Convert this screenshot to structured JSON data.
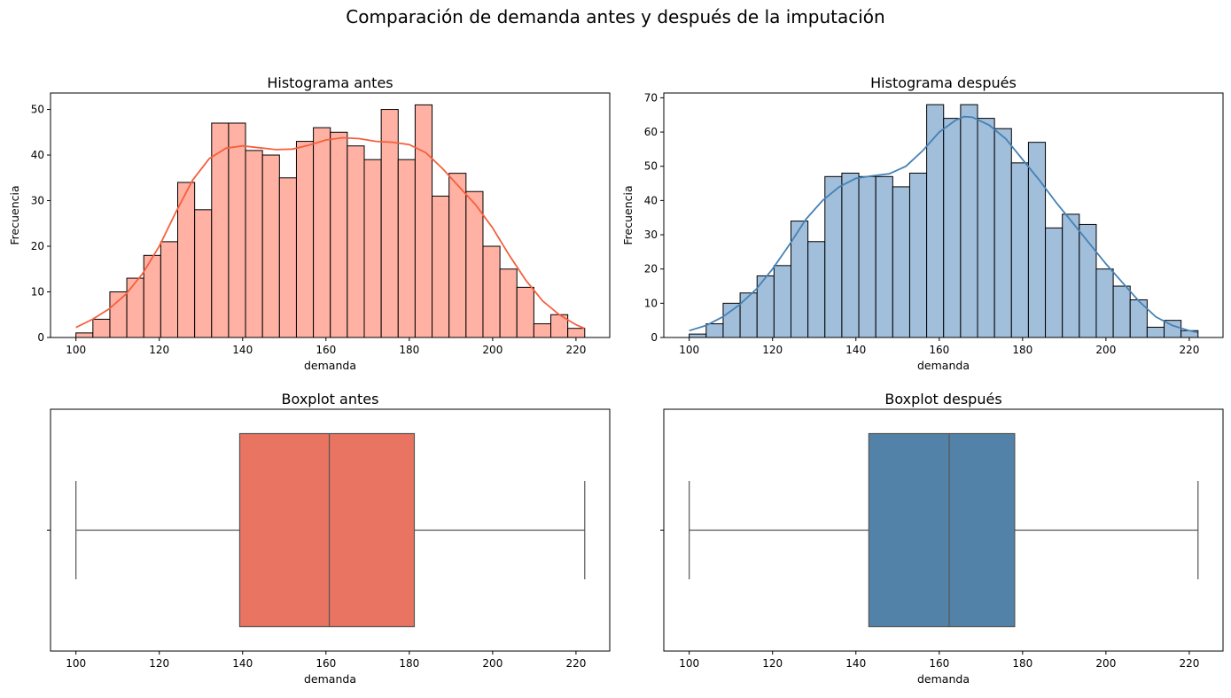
{
  "suptitle": "Comparación de demanda antes y después de la imputación",
  "chart_data": [
    {
      "id": "hist-antes",
      "type": "bar",
      "title": "Histograma antes",
      "xlabel": "demanda",
      "ylabel": "Frecuencia",
      "xlim": [
        93.9,
        228.1
      ],
      "ylim": [
        0,
        53.6
      ],
      "xticks": [
        100,
        120,
        140,
        160,
        180,
        200,
        220
      ],
      "yticks": [
        0,
        10,
        20,
        30,
        40,
        50
      ],
      "bin_start": 100,
      "bin_width": 4.07,
      "values": [
        1,
        4,
        10,
        13,
        18,
        21,
        34,
        28,
        47,
        47,
        41,
        40,
        35,
        43,
        46,
        45,
        42,
        39,
        50,
        39,
        51,
        31,
        36,
        32,
        20,
        15,
        11,
        3,
        5,
        2
      ],
      "fill": "#ffb1a3",
      "kde_color": "#f4603e",
      "kde": [
        [
          100,
          2.2
        ],
        [
          104,
          4
        ],
        [
          108,
          6.3
        ],
        [
          112,
          9.5
        ],
        [
          116,
          14
        ],
        [
          120,
          20
        ],
        [
          124,
          27.5
        ],
        [
          128,
          34.5
        ],
        [
          132,
          39.2
        ],
        [
          136,
          41.5
        ],
        [
          140,
          42
        ],
        [
          144,
          41.6
        ],
        [
          148,
          41.2
        ],
        [
          152,
          41.3
        ],
        [
          156,
          42.2
        ],
        [
          160,
          43.3
        ],
        [
          164,
          43.8
        ],
        [
          168,
          43.6
        ],
        [
          172,
          43
        ],
        [
          176,
          42.8
        ],
        [
          180,
          42.3
        ],
        [
          184,
          40.5
        ],
        [
          188,
          37
        ],
        [
          192,
          33
        ],
        [
          196,
          29
        ],
        [
          200,
          24
        ],
        [
          204,
          18
        ],
        [
          208,
          12.5
        ],
        [
          212,
          8
        ],
        [
          216,
          5
        ],
        [
          220,
          2.8
        ],
        [
          222,
          2
        ]
      ]
    },
    {
      "id": "hist-despues",
      "type": "bar",
      "title": "Histograma después",
      "xlabel": "demanda",
      "ylabel": "Frecuencia",
      "xlim": [
        93.9,
        228.1
      ],
      "ylim": [
        0,
        71.4
      ],
      "xticks": [
        100,
        120,
        140,
        160,
        180,
        200,
        220
      ],
      "yticks": [
        0,
        10,
        20,
        30,
        40,
        50,
        60,
        70
      ],
      "bin_start": 100,
      "bin_width": 4.07,
      "values": [
        1,
        4,
        10,
        13,
        18,
        21,
        34,
        28,
        47,
        48,
        47,
        47,
        44,
        48,
        68,
        64,
        68,
        64,
        61,
        51,
        57,
        32,
        36,
        33,
        20,
        15,
        11,
        3,
        5,
        2
      ],
      "fill": "#a1bedb",
      "kde_color": "#4682b4",
      "kde": [
        [
          100,
          2
        ],
        [
          104,
          3.5
        ],
        [
          108,
          6
        ],
        [
          112,
          9.5
        ],
        [
          116,
          14
        ],
        [
          120,
          20
        ],
        [
          124,
          27
        ],
        [
          128,
          34.5
        ],
        [
          132,
          40
        ],
        [
          136,
          44
        ],
        [
          140,
          46.5
        ],
        [
          144,
          47.2
        ],
        [
          148,
          47.8
        ],
        [
          152,
          50
        ],
        [
          156,
          54.5
        ],
        [
          160,
          60
        ],
        [
          164,
          63.5
        ],
        [
          166,
          64.5
        ],
        [
          168,
          64.3
        ],
        [
          172,
          62
        ],
        [
          176,
          58
        ],
        [
          180,
          52
        ],
        [
          184,
          46
        ],
        [
          188,
          39.5
        ],
        [
          192,
          33.5
        ],
        [
          196,
          27.5
        ],
        [
          200,
          21.5
        ],
        [
          204,
          16
        ],
        [
          208,
          10.5
        ],
        [
          212,
          6
        ],
        [
          216,
          3.5
        ],
        [
          220,
          2
        ],
        [
          222,
          1.5
        ]
      ]
    },
    {
      "id": "box-antes",
      "type": "box",
      "title": "Boxplot antes",
      "xlabel": "demanda",
      "xlim": [
        93.9,
        228.1
      ],
      "xticks": [
        100,
        120,
        140,
        160,
        180,
        200,
        220
      ],
      "min": 100,
      "q1": 139.3,
      "median": 160.8,
      "q3": 181.2,
      "max": 222.1,
      "fill": "#e87461"
    },
    {
      "id": "box-despues",
      "type": "box",
      "title": "Boxplot después",
      "xlabel": "demanda",
      "xlim": [
        93.9,
        228.1
      ],
      "xticks": [
        100,
        120,
        140,
        160,
        180,
        200,
        220
      ],
      "min": 100,
      "q1": 143.1,
      "median": 162.4,
      "q3": 178.1,
      "max": 222.1,
      "fill": "#5282a8"
    }
  ]
}
